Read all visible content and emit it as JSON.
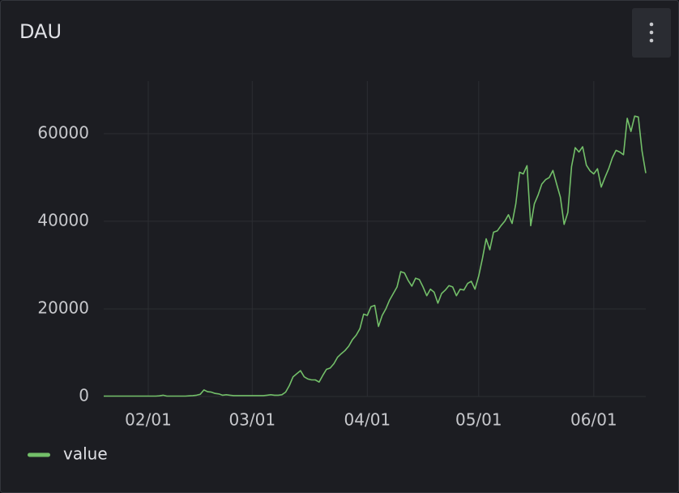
{
  "chart_data": {
    "type": "line",
    "title": "DAU",
    "x": [
      "01/20",
      "01/21",
      "01/22",
      "01/23",
      "01/24",
      "01/25",
      "01/26",
      "01/27",
      "01/28",
      "01/29",
      "01/30",
      "01/31",
      "02/01",
      "02/02",
      "02/03",
      "02/04",
      "02/05",
      "02/06",
      "02/07",
      "02/08",
      "02/09",
      "02/10",
      "02/11",
      "02/12",
      "02/13",
      "02/14",
      "02/15",
      "02/16",
      "02/17",
      "02/18",
      "02/19",
      "02/20",
      "02/21",
      "02/22",
      "02/23",
      "02/24",
      "02/25",
      "02/26",
      "02/27",
      "02/28",
      "03/01",
      "03/02",
      "03/03",
      "03/04",
      "03/05",
      "03/06",
      "03/07",
      "03/08",
      "03/09",
      "03/10",
      "03/11",
      "03/12",
      "03/13",
      "03/14",
      "03/15",
      "03/16",
      "03/17",
      "03/18",
      "03/19",
      "03/20",
      "03/21",
      "03/22",
      "03/23",
      "03/24",
      "03/25",
      "03/26",
      "03/27",
      "03/28",
      "03/29",
      "03/30",
      "03/31",
      "04/01",
      "04/02",
      "04/03",
      "04/04",
      "04/05",
      "04/06",
      "04/07",
      "04/08",
      "04/09",
      "04/10",
      "04/11",
      "04/12",
      "04/13",
      "04/14",
      "04/15",
      "04/16",
      "04/17",
      "04/18",
      "04/19",
      "04/20",
      "04/21",
      "04/22",
      "04/23",
      "04/24",
      "04/25",
      "04/26",
      "04/27",
      "04/28",
      "04/29",
      "04/30",
      "05/01",
      "05/02",
      "05/03",
      "05/04",
      "05/05",
      "05/06",
      "05/07",
      "05/08",
      "05/09",
      "05/10",
      "05/11",
      "05/12",
      "05/13",
      "05/14",
      "05/15",
      "05/16",
      "05/17",
      "05/18",
      "05/19",
      "05/20",
      "05/21",
      "05/22",
      "05/23",
      "05/24",
      "05/25",
      "05/26",
      "05/27",
      "05/28",
      "05/29",
      "05/30",
      "05/31",
      "06/01",
      "06/02",
      "06/03",
      "06/04",
      "06/05",
      "06/06",
      "06/07",
      "06/08",
      "06/09",
      "06/10",
      "06/11",
      "06/12",
      "06/13",
      "06/14",
      "06/15"
    ],
    "series": [
      {
        "name": "value",
        "color": "#73bf69",
        "values": [
          100,
          100,
          100,
          100,
          100,
          100,
          100,
          100,
          100,
          100,
          100,
          100,
          100,
          100,
          100,
          150,
          300,
          100,
          100,
          100,
          100,
          100,
          100,
          150,
          200,
          300,
          500,
          1500,
          1100,
          1000,
          700,
          600,
          300,
          400,
          300,
          200,
          200,
          200,
          200,
          200,
          200,
          200,
          200,
          200,
          300,
          400,
          300,
          300,
          400,
          1000,
          2500,
          4500,
          5200,
          5900,
          4500,
          4000,
          3800,
          3800,
          3300,
          4800,
          6200,
          6500,
          7500,
          9000,
          9800,
          10500,
          11500,
          13000,
          14000,
          15500,
          18800,
          18500,
          20500,
          20800,
          16000,
          18500,
          20000,
          22000,
          23500,
          25000,
          28500,
          28200,
          26500,
          25200,
          27000,
          26700,
          25000,
          23000,
          24500,
          23800,
          21300,
          23500,
          24300,
          25300,
          25000,
          23000,
          24500,
          24300,
          25800,
          26300,
          24500,
          27500,
          31500,
          36000,
          33500,
          37500,
          37800,
          39000,
          40000,
          41500,
          39500,
          44000,
          51200,
          50800,
          52700,
          39000,
          44000,
          46000,
          48500,
          49500,
          50000,
          51600,
          48500,
          45500,
          39300,
          42000,
          52500,
          56800,
          55800,
          57000,
          52800,
          51500,
          50800,
          52000,
          47800,
          50000,
          52000,
          54500,
          56200,
          55800,
          55200,
          63500,
          60500,
          64000,
          63800,
          56000,
          51000
        ]
      }
    ],
    "xlim": [
      "01/20",
      "06/15"
    ],
    "xticks": [
      "02/01",
      "03/01",
      "04/01",
      "05/01",
      "06/01"
    ],
    "ylim": [
      0,
      72000
    ],
    "yticks": [
      0,
      20000,
      40000,
      60000
    ],
    "grid": true,
    "legend": "bottom-left"
  }
}
